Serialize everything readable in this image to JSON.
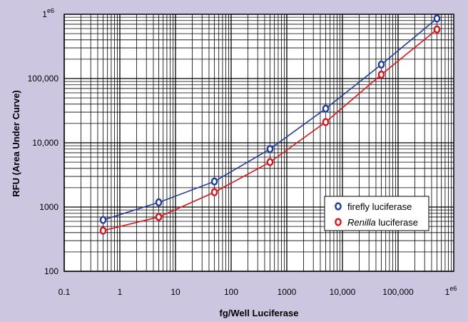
{
  "chart_data": {
    "type": "scatter",
    "xlabel": "fg/Well Luciferase",
    "ylabel": "RFU (Area Under Curve)",
    "x_scale": "log",
    "y_scale": "log",
    "xlim": [
      0.1,
      1000000
    ],
    "ylim": [
      100,
      1000000
    ],
    "grid": true,
    "legend_position": "lower-right",
    "x_ticks": [
      {
        "value": 0.1,
        "label": "0.1"
      },
      {
        "value": 1,
        "label": "1"
      },
      {
        "value": 10,
        "label": "10"
      },
      {
        "value": 100,
        "label": "100"
      },
      {
        "value": 1000,
        "label": "1000"
      },
      {
        "value": 10000,
        "label": "10,000"
      },
      {
        "value": 100000,
        "label": "100,000"
      },
      {
        "value": 1000000,
        "label": "1",
        "exponent": "e6"
      }
    ],
    "y_ticks": [
      {
        "value": 100,
        "label": "100"
      },
      {
        "value": 1000,
        "label": "1000"
      },
      {
        "value": 10000,
        "label": "10,000"
      },
      {
        "value": 100000,
        "label": "100,000"
      },
      {
        "value": 1000000,
        "label": "1",
        "exponent": "e6"
      }
    ],
    "series": [
      {
        "name": "firefly luciferase",
        "color": "#1f3ca0",
        "x": [
          0.5,
          5,
          50,
          500,
          5000,
          50000,
          500000
        ],
        "y": [
          630,
          1180,
          2500,
          8000,
          34000,
          165000,
          860000
        ]
      },
      {
        "name_italic": "Renilla",
        "name": " luciferase",
        "color": "#e0121c",
        "x": [
          0.5,
          5,
          50,
          500,
          5000,
          50000,
          500000
        ],
        "y": [
          430,
          700,
          1700,
          5000,
          21000,
          115000,
          580000
        ]
      }
    ]
  }
}
